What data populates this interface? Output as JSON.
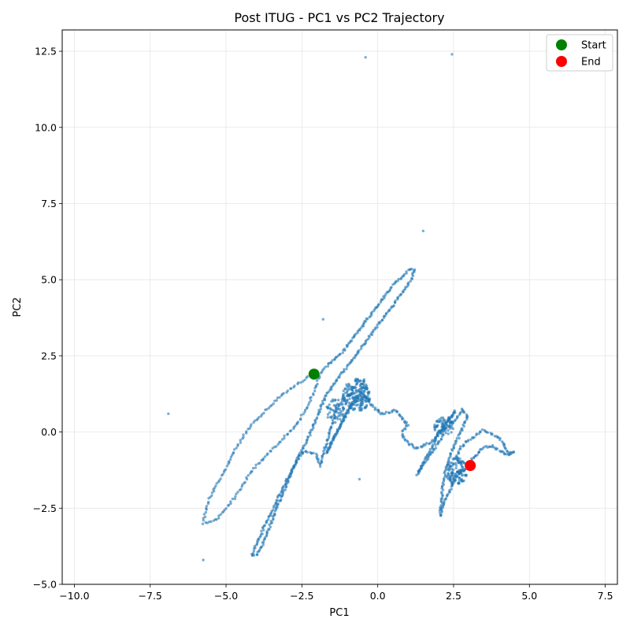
{
  "chart_data": {
    "type": "scatter",
    "title": "Post ITUG - PC1 vs PC2 Trajectory",
    "xlabel": "PC1",
    "ylabel": "PC2",
    "xlim": [
      -10.4,
      7.9
    ],
    "ylim": [
      -5.0,
      13.2
    ],
    "xticks": [
      -10.0,
      -7.5,
      -5.0,
      -2.5,
      0.0,
      2.5,
      5.0,
      7.5
    ],
    "yticks": [
      -5.0,
      -2.5,
      0.0,
      2.5,
      5.0,
      7.5,
      10.0,
      12.5
    ],
    "xtick_labels": [
      "−10.0",
      "−7.5",
      "−5.0",
      "−2.5",
      "0.0",
      "2.5",
      "5.0",
      "7.5"
    ],
    "ytick_labels": [
      "−5.0",
      "−2.5",
      "0.0",
      "2.5",
      "5.0",
      "7.5",
      "10.0",
      "12.5"
    ],
    "grid": true,
    "legend": {
      "position": "top-right",
      "entries": [
        {
          "label": "Start",
          "color": "#008000"
        },
        {
          "label": "End",
          "color": "#ff0000"
        }
      ]
    },
    "point_color": "#1f77b4",
    "start_point": {
      "x": -2.1,
      "y": 1.9
    },
    "end_point": {
      "x": 3.05,
      "y": -1.1
    },
    "series": [
      {
        "path": [
          [
            -2.1,
            1.9
          ],
          [
            -2.3,
            1.8
          ],
          [
            -2.6,
            1.6
          ],
          [
            -2.9,
            1.4
          ],
          [
            -3.2,
            1.2
          ],
          [
            -3.5,
            0.9
          ],
          [
            -3.8,
            0.6
          ],
          [
            -4.1,
            0.3
          ],
          [
            -4.4,
            -0.1
          ],
          [
            -4.7,
            -0.6
          ],
          [
            -5.0,
            -1.2
          ],
          [
            -5.3,
            -1.7
          ],
          [
            -5.55,
            -2.2
          ],
          [
            -5.7,
            -2.7
          ],
          [
            -5.75,
            -3.0
          ],
          [
            -5.6,
            -3.0
          ],
          [
            -5.3,
            -2.85
          ],
          [
            -5.0,
            -2.5
          ],
          [
            -4.6,
            -2.0
          ],
          [
            -4.3,
            -1.5
          ],
          [
            -4.0,
            -1.1
          ],
          [
            -3.7,
            -0.8
          ],
          [
            -3.4,
            -0.5
          ],
          [
            -3.1,
            -0.2
          ],
          [
            -2.8,
            0.1
          ],
          [
            -2.6,
            0.35
          ],
          [
            -2.4,
            0.7
          ],
          [
            -2.2,
            1.1
          ],
          [
            -2.0,
            1.6
          ],
          [
            -1.85,
            2.0
          ],
          [
            -1.7,
            2.15
          ]
        ],
        "step": 0.07
      },
      {
        "path": [
          [
            -1.7,
            2.15
          ],
          [
            -1.4,
            2.4
          ],
          [
            -1.1,
            2.7
          ],
          [
            -0.8,
            3.1
          ],
          [
            -0.5,
            3.5
          ],
          [
            -0.2,
            3.9
          ],
          [
            0.1,
            4.3
          ],
          [
            0.4,
            4.7
          ],
          [
            0.7,
            5.0
          ],
          [
            1.0,
            5.3
          ],
          [
            1.2,
            5.35
          ],
          [
            1.15,
            5.1
          ],
          [
            0.9,
            4.7
          ],
          [
            0.6,
            4.3
          ],
          [
            0.3,
            3.9
          ],
          [
            0.0,
            3.5
          ],
          [
            -0.3,
            3.1
          ],
          [
            -0.6,
            2.7
          ],
          [
            -0.9,
            2.3
          ],
          [
            -1.2,
            1.9
          ],
          [
            -1.5,
            1.5
          ],
          [
            -1.8,
            1.0
          ],
          [
            -2.0,
            0.5
          ],
          [
            -2.2,
            0.0
          ],
          [
            -2.5,
            -0.6
          ],
          [
            -2.8,
            -1.2
          ],
          [
            -3.1,
            -1.8
          ],
          [
            -3.4,
            -2.4
          ],
          [
            -3.7,
            -3.0
          ],
          [
            -3.9,
            -3.5
          ],
          [
            -4.05,
            -3.8
          ],
          [
            -4.15,
            -4.05
          ],
          [
            -4.0,
            -4.05
          ],
          [
            -3.8,
            -3.7
          ],
          [
            -3.6,
            -3.2
          ],
          [
            -3.4,
            -2.7
          ],
          [
            -3.2,
            -2.2
          ],
          [
            -3.0,
            -1.7
          ],
          [
            -2.8,
            -1.2
          ],
          [
            -2.6,
            -0.8
          ],
          [
            -2.4,
            -0.62
          ],
          [
            -2.0,
            -0.75
          ],
          [
            -1.9,
            -1.1
          ],
          [
            -1.7,
            -0.4
          ],
          [
            -1.5,
            0.3
          ],
          [
            -1.3,
            0.9
          ],
          [
            -1.0,
            1.2
          ],
          [
            -0.7,
            1.3
          ],
          [
            -0.45,
            1.7
          ],
          [
            -0.6,
            1.2
          ],
          [
            -0.9,
            0.8
          ],
          [
            -1.2,
            0.3
          ],
          [
            -1.5,
            -0.3
          ],
          [
            -1.7,
            -0.7
          ],
          [
            -1.4,
            -0.1
          ],
          [
            -1.1,
            0.5
          ],
          [
            -0.8,
            1.0
          ],
          [
            -0.5,
            1.3
          ],
          [
            -0.3,
            1.0
          ],
          [
            -0.1,
            0.8
          ],
          [
            0.1,
            0.6
          ],
          [
            0.4,
            0.65
          ],
          [
            0.6,
            0.72
          ],
          [
            0.8,
            0.45
          ],
          [
            1.0,
            0.25
          ],
          [
            0.8,
            0.0
          ],
          [
            0.85,
            -0.2
          ],
          [
            1.05,
            -0.4
          ],
          [
            1.3,
            -0.55
          ],
          [
            1.5,
            -0.45
          ],
          [
            1.8,
            -0.3
          ],
          [
            2.0,
            -0.1
          ],
          [
            2.2,
            0.2
          ],
          [
            2.4,
            0.5
          ],
          [
            2.55,
            0.7
          ],
          [
            2.3,
            0.3
          ],
          [
            2.1,
            -0.2
          ],
          [
            1.9,
            -0.5
          ],
          [
            1.7,
            -0.8
          ],
          [
            1.5,
            -1.1
          ],
          [
            1.3,
            -1.4
          ],
          [
            1.5,
            -1.0
          ],
          [
            1.8,
            -0.5
          ],
          [
            2.0,
            0.0
          ],
          [
            2.3,
            0.15
          ],
          [
            2.6,
            0.45
          ],
          [
            2.8,
            0.75
          ],
          [
            2.95,
            0.5
          ],
          [
            2.75,
            0.0
          ],
          [
            2.5,
            -0.5
          ],
          [
            2.3,
            -1.0
          ],
          [
            2.15,
            -1.7
          ],
          [
            2.1,
            -2.3
          ],
          [
            2.05,
            -2.75
          ],
          [
            2.2,
            -2.3
          ],
          [
            2.4,
            -1.9
          ],
          [
            2.6,
            -1.5
          ],
          [
            2.8,
            -1.2
          ],
          [
            2.6,
            -0.8
          ],
          [
            2.75,
            -0.5
          ],
          [
            3.0,
            -0.25
          ],
          [
            3.2,
            -0.15
          ],
          [
            3.45,
            0.05
          ],
          [
            3.7,
            -0.05
          ],
          [
            3.95,
            -0.15
          ],
          [
            4.15,
            -0.4
          ],
          [
            4.3,
            -0.7
          ],
          [
            4.5,
            -0.65
          ],
          [
            4.25,
            -0.75
          ],
          [
            4.0,
            -0.6
          ],
          [
            3.8,
            -0.45
          ],
          [
            3.5,
            -0.5
          ],
          [
            3.3,
            -0.7
          ],
          [
            3.1,
            -0.9
          ],
          [
            3.05,
            -1.1
          ]
        ],
        "step": 0.05
      }
    ],
    "outliers": [
      {
        "x": -0.4,
        "y": 12.3
      },
      {
        "x": 2.45,
        "y": 12.4
      },
      {
        "x": 1.5,
        "y": 6.6
      },
      {
        "x": -1.8,
        "y": 3.7
      },
      {
        "x": -6.9,
        "y": 0.6
      },
      {
        "x": -5.75,
        "y": -4.2
      },
      {
        "x": -0.6,
        "y": -1.55
      }
    ],
    "clusters": [
      {
        "cx": -0.7,
        "cy": 1.2,
        "rx": 0.45,
        "ry": 0.55,
        "n": 160
      },
      {
        "cx": 2.6,
        "cy": -1.3,
        "rx": 0.35,
        "ry": 0.45,
        "n": 110
      },
      {
        "cx": 2.2,
        "cy": 0.2,
        "rx": 0.35,
        "ry": 0.3,
        "n": 60
      },
      {
        "cx": -1.4,
        "cy": 0.7,
        "rx": 0.3,
        "ry": 0.4,
        "n": 50
      }
    ]
  }
}
